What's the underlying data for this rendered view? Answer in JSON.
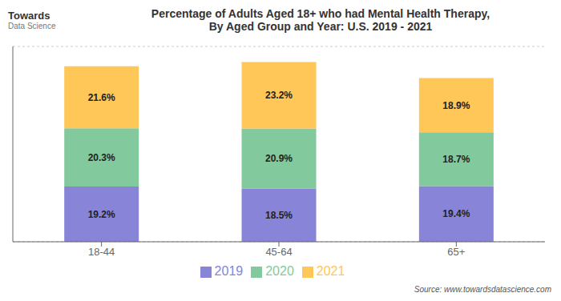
{
  "chart_data": {
    "type": "bar",
    "title": "Percentage of Adults Aged 18+ who had Mental Health Therapy,",
    "subtitle": "By Aged Group and Year: U.S. 2019 - 2021",
    "annotations": [
      "Towards",
      "Data Science",
      "Source: www.towardsdatascience.com"
    ],
    "categories": [
      "18-44",
      "45-64",
      "65+"
    ],
    "series": [
      {
        "name": "2019",
        "values": [
          19.2,
          18.5,
          19.4
        ],
        "value_labels": [
          "19.2%",
          "18.5%",
          "19.4%"
        ]
      },
      {
        "name": "2020",
        "values": [
          20.3,
          20.9,
          18.7
        ],
        "value_labels": [
          "20.3%",
          "20.9%",
          "18.7%"
        ]
      },
      {
        "name": "2021",
        "values": [
          21.6,
          23.2,
          18.9
        ],
        "value_labels": [
          "21.6%",
          "23.2%",
          "18.9%"
        ]
      }
    ],
    "stacked": true,
    "data_labels": true,
    "ylim": [
      0,
      68
    ],
    "yticks": [
      0,
      10,
      20,
      30,
      40,
      50,
      60
    ],
    "grid": true,
    "legend": "bottom",
    "tick_labels": "x"
  }
}
